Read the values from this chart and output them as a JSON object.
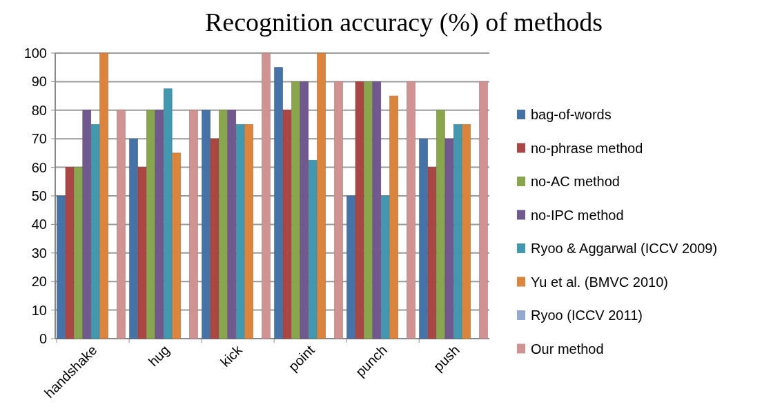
{
  "chart_data": {
    "type": "bar",
    "title": "Recognition accuracy (%) of methods",
    "categories": [
      "handshake",
      "hug",
      "kick",
      "point",
      "punch",
      "push"
    ],
    "series": [
      {
        "name": "bag-of-words",
        "color": "#4572a7",
        "values": [
          50,
          70,
          80,
          95,
          50,
          70
        ]
      },
      {
        "name": "no-phrase method",
        "color": "#aa4643",
        "values": [
          60,
          60,
          70,
          80,
          90,
          60
        ]
      },
      {
        "name": "no-AC method",
        "color": "#89a54e",
        "values": [
          60,
          80,
          80,
          90,
          90,
          80
        ]
      },
      {
        "name": "no-IPC method",
        "color": "#71588f",
        "values": [
          80,
          80,
          80,
          90,
          90,
          70
        ]
      },
      {
        "name": "Ryoo & Aggarwal (ICCV 2009)",
        "color": "#4198af",
        "values": [
          75,
          87.5,
          75,
          62.5,
          50,
          75
        ]
      },
      {
        "name": "Yu et al. (BMVC 2010)",
        "color": "#db843d",
        "values": [
          100,
          65,
          75,
          100,
          85,
          75
        ]
      },
      {
        "name": "Ryoo (ICCV 2011)",
        "color": "#93a9cf",
        "values": [
          0,
          0,
          0,
          0,
          0,
          0
        ]
      },
      {
        "name": "Our method",
        "color": "#d19392",
        "values": [
          80,
          80,
          100,
          90,
          90,
          90
        ]
      }
    ],
    "ylim": [
      0,
      100
    ],
    "yticks": [
      0,
      10,
      20,
      30,
      40,
      50,
      60,
      70,
      80,
      90,
      100
    ],
    "grid": "y",
    "legend": "right"
  }
}
